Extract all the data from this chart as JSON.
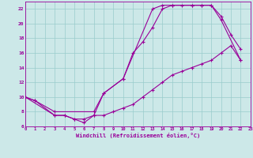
{
  "background_color": "#cce8e8",
  "grid_color": "#99cccc",
  "line_color": "#990099",
  "xlabel": "Windchill (Refroidissement éolien,°C)",
  "xlim": [
    0,
    23
  ],
  "ylim": [
    6,
    23
  ],
  "yticks": [
    6,
    8,
    10,
    12,
    14,
    16,
    18,
    20,
    22
  ],
  "xticks": [
    0,
    1,
    2,
    3,
    4,
    5,
    6,
    7,
    8,
    9,
    10,
    11,
    12,
    13,
    14,
    15,
    16,
    17,
    18,
    19,
    20,
    21,
    22,
    23
  ],
  "line1_x": [
    0,
    1,
    3,
    4,
    5,
    6,
    7,
    8,
    10,
    11,
    12,
    13,
    14,
    15,
    16,
    17,
    18,
    19,
    20,
    22
  ],
  "line1_y": [
    10,
    9.5,
    7.5,
    7.5,
    7.0,
    6.5,
    7.5,
    10.5,
    12.5,
    16.0,
    17.5,
    19.5,
    22.0,
    22.5,
    22.5,
    22.5,
    22.5,
    22.5,
    20.5,
    15.0
  ],
  "line2_x": [
    0,
    1,
    3,
    7,
    8,
    10,
    13,
    14,
    15,
    17,
    18,
    19,
    20,
    21,
    22
  ],
  "line2_y": [
    10,
    9.5,
    8.0,
    8.0,
    10.5,
    12.5,
    22.0,
    22.5,
    22.5,
    22.5,
    22.5,
    22.5,
    21.0,
    18.5,
    16.5
  ],
  "line3_x": [
    0,
    3,
    4,
    5,
    6,
    7,
    8,
    9,
    10,
    11,
    12,
    13,
    14,
    15,
    16,
    17,
    18,
    19,
    20,
    21,
    22
  ],
  "line3_y": [
    10,
    7.5,
    7.5,
    7.0,
    7.0,
    7.5,
    7.5,
    8.0,
    8.5,
    9.0,
    10.0,
    11.0,
    12.0,
    13.0,
    13.5,
    14.0,
    14.5,
    15.0,
    16.0,
    17.0,
    15.0
  ]
}
